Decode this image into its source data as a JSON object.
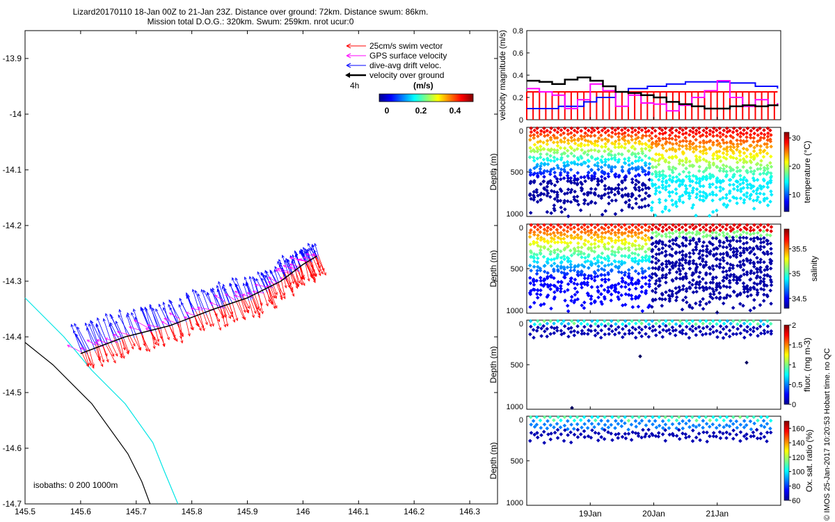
{
  "title": {
    "line1": "Lizard20170110 18-Jan 00Z to 21-Jan 23Z. Distance over ground: 72km. Distance swum: 86km.",
    "line2": "Mission total D.O.G.: 320km. Swum: 259km. nrot ucur:0"
  },
  "credit": "© IMOS 25-Jan-2017 10:20:53 Hobart time. no QC",
  "colors": {
    "swim": "#ff0000",
    "gps": "#ff00ff",
    "drift": "#0000ff",
    "ground": "#000000",
    "isobath_shallow": "#00e5e5",
    "isobath_deep": "#000000"
  },
  "chart_data": [
    {
      "id": "map",
      "type": "scatter",
      "title": "glider track with velocity vectors",
      "xlim": [
        145.5,
        146.35
      ],
      "ylim": [
        -14.7,
        -13.85
      ],
      "xticks": [
        145.5,
        145.6,
        145.7,
        145.8,
        145.9,
        146,
        146.1,
        146.2,
        146.3
      ],
      "xtick_labels": [
        "145.5",
        "145.6",
        "145.7",
        "145.8",
        "145.9",
        "146",
        "146.1",
        "146.2",
        "146.3"
      ],
      "yticks": [
        -13.9,
        -14,
        -14.1,
        -14.2,
        -14.3,
        -14.4,
        -14.5,
        -14.6,
        -14.7
      ],
      "ytick_labels": [
        "-13.9",
        "-14",
        "-14.1",
        "-14.2",
        "-14.3",
        "-14.4",
        "-14.5",
        "-14.6",
        "-14.7"
      ],
      "legend": [
        {
          "label": "25cm/s swim vector",
          "color": "#ff0000"
        },
        {
          "label": "GPS surface velocity",
          "color": "#ff00ff"
        },
        {
          "label": "dive-avg drift veloc.",
          "color": "#0000ff"
        },
        {
          "label": "velocity over ground",
          "color": "#000000"
        }
      ],
      "legend_note": "4h",
      "colorbar": {
        "unit": "(m/s)",
        "ticks": [
          "0",
          "0.2",
          "0.4"
        ],
        "range": [
          0,
          0.5
        ]
      },
      "isobath_label": "isobaths: 0   200  1000m",
      "track": [
        [
          145.6,
          -14.43
        ],
        [
          145.68,
          -14.4
        ],
        [
          145.76,
          -14.38
        ],
        [
          145.84,
          -14.35
        ],
        [
          145.9,
          -14.33
        ],
        [
          145.96,
          -14.3
        ],
        [
          146.0,
          -14.27
        ],
        [
          146.025,
          -14.255
        ]
      ],
      "isobath_shallow": [
        [
          145.5,
          -14.33
        ],
        [
          145.57,
          -14.4
        ],
        [
          145.62,
          -14.46
        ],
        [
          145.68,
          -14.52
        ],
        [
          145.73,
          -14.59
        ],
        [
          145.75,
          -14.64
        ],
        [
          145.775,
          -14.7
        ]
      ],
      "isobath_deep": [
        [
          145.5,
          -14.41
        ],
        [
          145.55,
          -14.45
        ],
        [
          145.62,
          -14.52
        ],
        [
          145.685,
          -14.61
        ],
        [
          145.71,
          -14.66
        ],
        [
          145.725,
          -14.7
        ]
      ]
    },
    {
      "id": "velocity",
      "type": "line",
      "ylabel": "velocity magnitude (m/s)",
      "ylim": [
        0,
        0.8
      ],
      "yticks": [
        "0",
        "0.2",
        "0.4",
        "0.6",
        "0.8"
      ],
      "xlim": [
        18.0,
        22.0
      ],
      "series": [
        {
          "name": "swim",
          "color": "#ff0000",
          "x": [
            18.0,
            21.95
          ],
          "values": [
            0.25,
            0.25
          ]
        },
        {
          "name": "drift",
          "color": "#0000ff",
          "x": [
            18.0,
            18.4,
            18.5,
            18.9,
            19.1,
            19.4,
            19.6,
            19.9,
            20.2,
            20.5,
            20.8,
            21.2,
            21.6,
            21.95
          ],
          "values": [
            0.1,
            0.1,
            0.12,
            0.16,
            0.2,
            0.25,
            0.28,
            0.3,
            0.32,
            0.34,
            0.34,
            0.33,
            0.3,
            0.28
          ]
        },
        {
          "name": "gps",
          "color": "#ff00ff",
          "x": [
            18.0,
            18.2,
            18.4,
            18.6,
            18.8,
            19.0,
            19.2,
            19.4,
            19.6,
            19.8,
            20.0,
            20.2,
            20.4,
            20.6,
            20.8,
            21.0,
            21.2,
            21.4,
            21.6,
            21.8,
            21.95
          ],
          "values": [
            0.28,
            0.25,
            0.22,
            0.1,
            0.18,
            0.32,
            0.26,
            0.12,
            0.22,
            0.15,
            0.14,
            0.08,
            0.13,
            0.2,
            0.26,
            0.35,
            0.2,
            0.12,
            0.18,
            0.13,
            0.15
          ]
        },
        {
          "name": "ground",
          "color": "#000000",
          "x": [
            18.0,
            18.2,
            18.4,
            18.6,
            18.8,
            19.0,
            19.2,
            19.4,
            19.6,
            19.8,
            20.0,
            20.2,
            20.4,
            20.6,
            20.8,
            21.0,
            21.2,
            21.4,
            21.6,
            21.8,
            21.95
          ],
          "values": [
            0.35,
            0.34,
            0.32,
            0.36,
            0.38,
            0.35,
            0.3,
            0.25,
            0.24,
            0.22,
            0.2,
            0.16,
            0.14,
            0.12,
            0.1,
            0.1,
            0.12,
            0.13,
            0.12,
            0.13,
            0.14
          ]
        }
      ]
    },
    {
      "id": "temperature",
      "type": "scatter",
      "ylabel": "Depth (m)",
      "yticks": [
        "0",
        "500",
        "1000"
      ],
      "ylim": [
        1000,
        0
      ],
      "colorbar": {
        "label": "temperature (°C)",
        "range": [
          4,
          32
        ],
        "ticks": [
          10,
          20,
          30
        ],
        "tick_labels": [
          "10",
          "20",
          "30"
        ]
      },
      "profile": {
        "count": 36,
        "max_depth": 1000,
        "break_profile": 18,
        "surface_value": 30,
        "deep_value": 5,
        "post_break_deep_value": 14
      }
    },
    {
      "id": "salinity",
      "type": "scatter",
      "ylabel": "Depth (m)",
      "yticks": [
        "0",
        "500",
        "1000"
      ],
      "ylim": [
        1000,
        0
      ],
      "colorbar": {
        "label": "salinity",
        "range": [
          34.3,
          35.9
        ],
        "ticks": [
          34.5,
          35,
          35.5
        ],
        "tick_labels": [
          "34.5",
          "35",
          "35.5"
        ]
      },
      "profile": {
        "count": 36,
        "max_depth": 1000,
        "break_profile": 18,
        "surface_value": 35.7,
        "deep_value": 34.5,
        "post_break_deep_value": 34.3
      }
    },
    {
      "id": "fluorescence",
      "type": "scatter",
      "ylabel": "Depth (m)",
      "yticks": [
        "0",
        "500",
        "1000"
      ],
      "ylim": [
        1000,
        0
      ],
      "colorbar": {
        "label": "fluor. (mg m-3)",
        "range": [
          0,
          2
        ],
        "ticks": [
          0,
          0.5,
          1,
          1.5,
          2
        ],
        "tick_labels": [
          "0",
          "0.5",
          "1",
          "1.5",
          "2"
        ]
      },
      "profile": {
        "count": 36,
        "max_depth": 200
      }
    },
    {
      "id": "oxygen",
      "type": "scatter",
      "ylabel": "Depth (m)",
      "yticks": [
        "0",
        "500",
        "1000"
      ],
      "ylim": [
        1000,
        0
      ],
      "colorbar": {
        "label": "Ox. sat. ratio (%)",
        "range": [
          60,
          170
        ],
        "ticks": [
          60,
          80,
          100,
          120,
          140,
          160
        ],
        "tick_labels": [
          "60",
          "80",
          "100",
          "120",
          "140",
          "160"
        ]
      },
      "profile": {
        "count": 36,
        "max_depth": 300
      }
    }
  ],
  "time_axis": {
    "ticks": [
      19,
      20,
      21
    ],
    "tick_labels": [
      "19Jan",
      "20Jan",
      "21Jan"
    ],
    "range": [
      18.0,
      22.0
    ]
  }
}
